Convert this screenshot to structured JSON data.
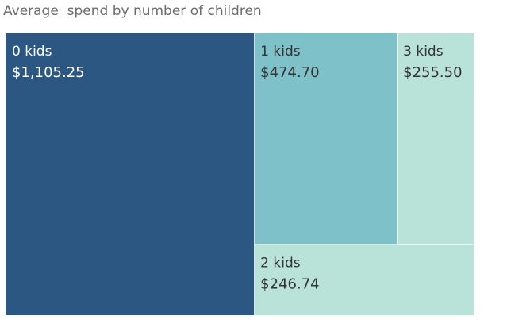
{
  "chart_data": {
    "type": "treemap",
    "title": "Average  spend by number of children",
    "colors": {
      "dark": "#2c5782",
      "mid": "#7fc1c8",
      "light": "#b9e2d8",
      "label_on_dark": "#ffffff",
      "label_on_light": "#333333"
    },
    "categories": [
      "0 kids",
      "1 kids",
      "3 kids",
      "2 kids"
    ],
    "values": [
      1105.25,
      474.7,
      255.5,
      246.74
    ],
    "value_labels": [
      "$1,105.25",
      "$474.70",
      "$255.50",
      "$246.74"
    ]
  }
}
